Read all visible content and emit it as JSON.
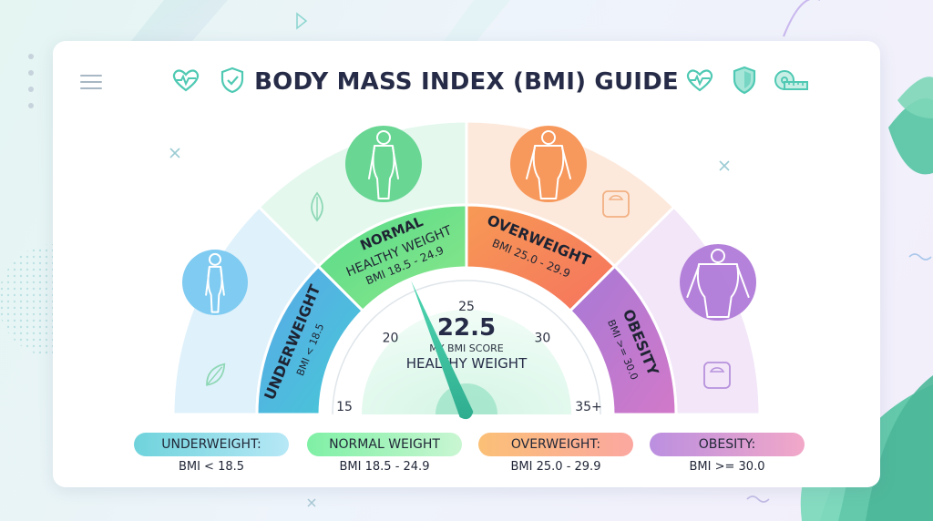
{
  "header": {
    "title": "BODY MASS INDEX (BMI) GUIDE",
    "left_icons": [
      "heart-pulse-icon",
      "shield-check-icon"
    ],
    "right_icons": [
      "heart-pulse-icon",
      "shield-icon",
      "measuring-tape-icon"
    ]
  },
  "categories": [
    {
      "key": "underweight",
      "name": "UNDERWEIGHT",
      "range": "BMI < 18.5",
      "color": "#5aa8e8",
      "icon": "underweight-figure-icon"
    },
    {
      "key": "normal",
      "name": "NORMAL",
      "sub": "HEALTHY WEIGHT",
      "range": "BMI 18.5 - 24.9",
      "color": "#4fd487",
      "icon": "normal-figure-icon"
    },
    {
      "key": "overweight",
      "name": "OVERWEIGHT",
      "range": "BMI 25.0 - 29.9",
      "color": "#f79a55",
      "icon": "overweight-figure-icon"
    },
    {
      "key": "obesity",
      "name": "OBESITY",
      "range": "BMI >= 30.0",
      "color": "#a779d6",
      "icon": "obesity-figure-icon"
    }
  ],
  "gauge": {
    "ticks": [
      "15",
      "20",
      "25",
      "30",
      "35+"
    ],
    "score": "22.5",
    "score_label": "MY BMI SCORE",
    "score_category": "HEALTHY WEIGHT",
    "score_value": 22.5,
    "scale_min": 15,
    "scale_max": 35
  },
  "legend": [
    {
      "label": "UNDERWEIGHT:",
      "range": "BMI < 18.5"
    },
    {
      "label": "NORMAL WEIGHT",
      "range": "BMI 18.5 - 24.9"
    },
    {
      "label": "OVERWEIGHT:",
      "range": "BMI 25.0 - 29.9"
    },
    {
      "label": "OBESITY:",
      "range": "BMI >= 30.0"
    }
  ]
}
